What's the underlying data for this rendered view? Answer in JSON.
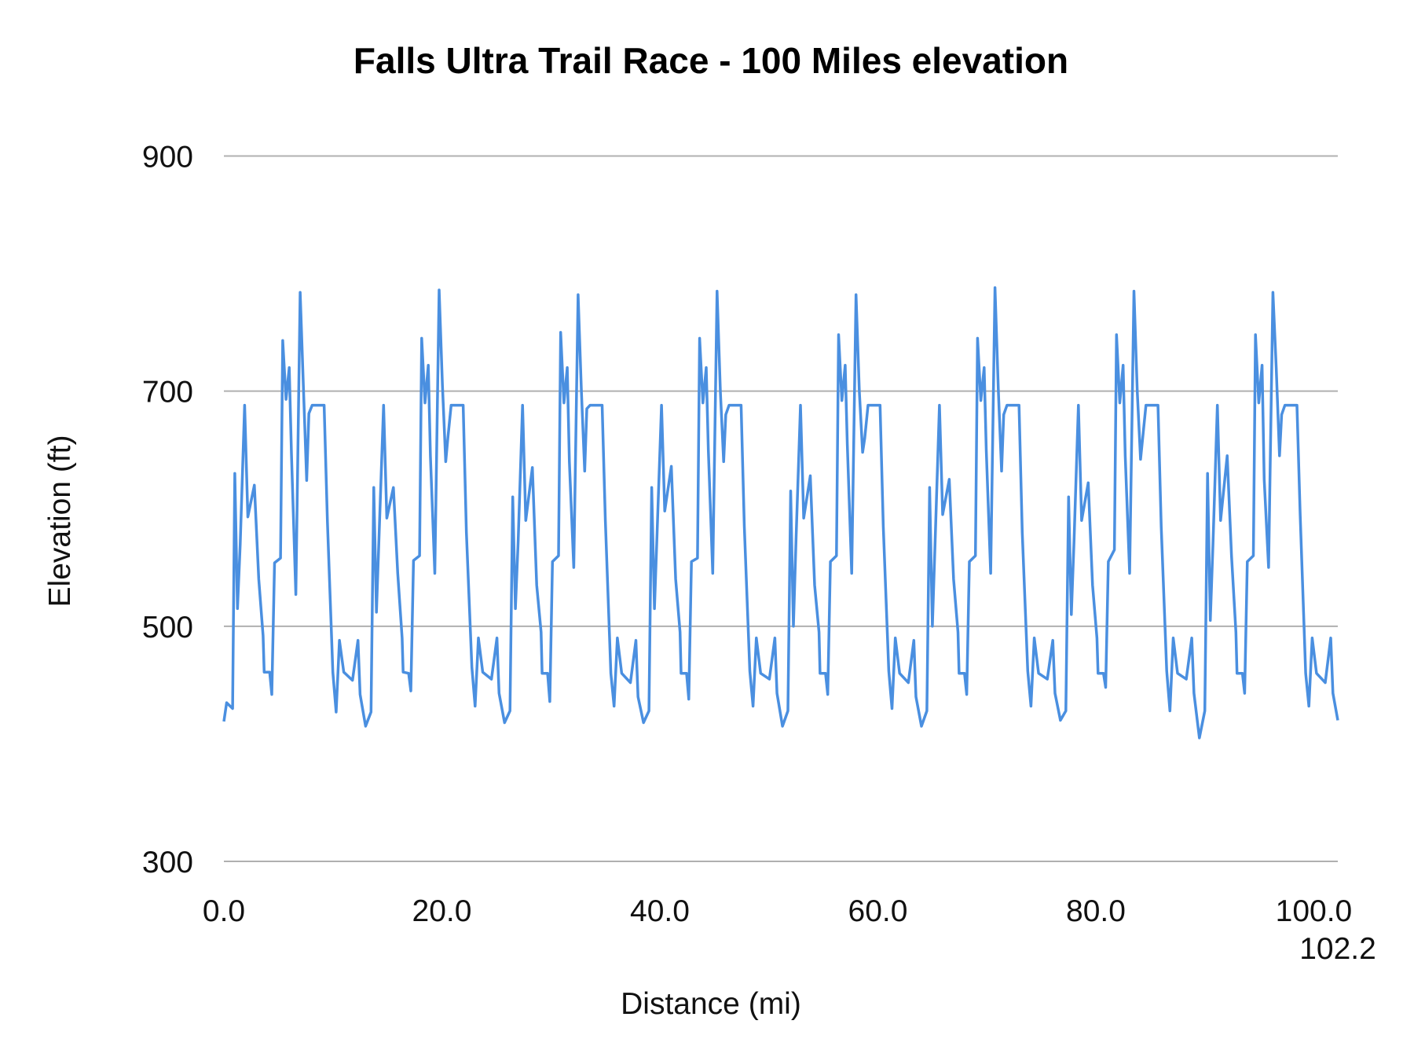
{
  "chart_data": {
    "type": "line",
    "title": "Falls Ultra Trail Race - 100 Miles elevation",
    "xlabel": "Distance (mi)",
    "ylabel": "Elevation (ft)",
    "xlim": [
      0,
      102.2
    ],
    "ylim": [
      300,
      900
    ],
    "x_ticks": [
      "0.0",
      "20.0",
      "40.0",
      "60.0",
      "80.0",
      "100.0",
      "102.2"
    ],
    "x_tick_values": [
      0,
      20,
      40,
      60,
      80,
      100,
      102.2
    ],
    "y_ticks": [
      "300",
      "500",
      "700",
      "900"
    ],
    "y_tick_values": [
      300,
      500,
      700,
      900
    ],
    "grid": "horizontal",
    "legend": "none",
    "line_color": "#4a8fe0",
    "grid_color": "#b0b0b0",
    "x": [
      0.0,
      0.25,
      0.8,
      1.0,
      1.25,
      1.5,
      1.9,
      2.2,
      2.8,
      3.2,
      3.6,
      3.7,
      4.2,
      4.4,
      4.65,
      5.2,
      5.4,
      5.7,
      6.0,
      6.2,
      6.6,
      7.0,
      7.3,
      7.6,
      7.8,
      8.1,
      9.2,
      9.5,
      10.0,
      10.3,
      10.6,
      11.0,
      11.8,
      12.3,
      12.5,
      13.0,
      13.5,
      13.75,
      14.0,
      14.25,
      14.65,
      14.95,
      15.55,
      15.95,
      16.35,
      16.45,
      16.95,
      17.15,
      17.4,
      17.95,
      18.15,
      18.45,
      18.75,
      18.95,
      19.35,
      19.75,
      20.05,
      20.35,
      20.55,
      20.85,
      21.95,
      22.25,
      22.75,
      23.05,
      23.35,
      23.75,
      24.55,
      25.05,
      25.25,
      25.75,
      26.25,
      26.5,
      26.75,
      27.0,
      27.4,
      27.7,
      28.3,
      28.7,
      29.1,
      29.2,
      29.7,
      29.9,
      30.15,
      30.7,
      30.9,
      31.2,
      31.5,
      31.7,
      32.1,
      32.5,
      32.8,
      33.1,
      33.3,
      33.6,
      34.7,
      35.0,
      35.5,
      35.8,
      36.1,
      36.5,
      37.3,
      37.8,
      38.0,
      38.5,
      39.0,
      39.25,
      39.5,
      39.75,
      40.15,
      40.45,
      41.05,
      41.45,
      41.85,
      41.95,
      42.45,
      42.65,
      42.9,
      43.45,
      43.65,
      43.95,
      44.25,
      44.45,
      44.85,
      45.25,
      45.55,
      45.85,
      46.05,
      46.35,
      47.45,
      47.75,
      48.25,
      48.55,
      48.85,
      49.25,
      50.05,
      50.55,
      50.75,
      51.25,
      51.75,
      52.0,
      52.25,
      52.5,
      52.9,
      53.2,
      53.8,
      54.2,
      54.6,
      54.7,
      55.2,
      55.4,
      55.65,
      56.2,
      56.4,
      56.7,
      57.0,
      57.2,
      57.6,
      58.0,
      58.3,
      58.6,
      58.8,
      59.1,
      60.2,
      60.5,
      61.0,
      61.3,
      61.6,
      62.0,
      62.8,
      63.3,
      63.5,
      64.0,
      64.5,
      64.75,
      65.0,
      65.25,
      65.65,
      65.95,
      66.55,
      66.95,
      67.35,
      67.45,
      67.95,
      68.15,
      68.4,
      68.95,
      69.15,
      69.45,
      69.75,
      69.95,
      70.35,
      70.75,
      71.05,
      71.35,
      71.55,
      71.85,
      72.95,
      73.25,
      73.75,
      74.05,
      74.35,
      74.75,
      75.55,
      76.05,
      76.25,
      76.75,
      77.25,
      77.5,
      77.75,
      78.0,
      78.4,
      78.7,
      79.3,
      79.7,
      80.1,
      80.2,
      80.7,
      80.9,
      81.15,
      81.7,
      81.9,
      82.2,
      82.5,
      82.7,
      83.1,
      83.5,
      83.8,
      84.1,
      84.3,
      84.6,
      85.7,
      86.0,
      86.5,
      86.8,
      87.1,
      87.5,
      88.3,
      88.8,
      89.0,
      89.5,
      90.0,
      90.25,
      90.5,
      90.75,
      91.15,
      91.45,
      92.05,
      92.45,
      92.85,
      92.95,
      93.45,
      93.65,
      93.9,
      94.45,
      94.65,
      94.95,
      95.25,
      95.45,
      95.85,
      96.25,
      96.55,
      96.85,
      97.05,
      97.35,
      98.45,
      98.75,
      99.25,
      99.55,
      99.85,
      100.25,
      101.05,
      101.55,
      101.75,
      102.2
    ],
    "y": [
      419,
      435,
      430,
      630,
      515,
      570,
      688,
      593,
      620,
      540,
      492,
      461,
      461,
      442,
      554,
      558,
      743,
      693,
      720,
      647,
      527,
      784,
      702,
      624,
      681,
      688,
      688,
      589,
      461,
      427,
      488,
      461,
      454,
      488,
      442,
      415,
      427,
      618,
      512,
      580,
      688,
      592,
      618,
      545,
      490,
      461,
      460,
      445,
      556,
      560,
      745,
      690,
      722,
      645,
      545,
      786,
      705,
      640,
      660,
      688,
      688,
      580,
      465,
      432,
      490,
      461,
      455,
      490,
      443,
      418,
      428,
      610,
      515,
      572,
      688,
      590,
      635,
      535,
      495,
      460,
      460,
      436,
      555,
      560,
      750,
      690,
      720,
      640,
      550,
      782,
      700,
      632,
      685,
      688,
      688,
      590,
      460,
      432,
      490,
      460,
      452,
      488,
      440,
      418,
      428,
      618,
      515,
      580,
      688,
      598,
      636,
      540,
      495,
      460,
      460,
      438,
      555,
      558,
      745,
      690,
      720,
      650,
      545,
      785,
      700,
      640,
      680,
      688,
      688,
      585,
      462,
      432,
      490,
      460,
      455,
      490,
      443,
      415,
      428,
      615,
      500,
      575,
      688,
      592,
      628,
      535,
      495,
      460,
      460,
      442,
      555,
      560,
      748,
      692,
      722,
      655,
      545,
      782,
      700,
      648,
      660,
      688,
      688,
      585,
      462,
      430,
      490,
      460,
      452,
      488,
      440,
      415,
      428,
      618,
      500,
      570,
      688,
      595,
      625,
      540,
      495,
      460,
      460,
      442,
      555,
      560,
      745,
      692,
      720,
      650,
      545,
      788,
      702,
      632,
      680,
      688,
      688,
      580,
      462,
      432,
      490,
      460,
      455,
      488,
      443,
      420,
      428,
      610,
      510,
      572,
      688,
      590,
      622,
      535,
      490,
      460,
      460,
      448,
      555,
      565,
      748,
      690,
      722,
      645,
      545,
      785,
      700,
      642,
      660,
      688,
      688,
      585,
      462,
      428,
      490,
      460,
      455,
      490,
      443,
      405,
      428,
      630,
      505,
      570,
      688,
      590,
      645,
      560,
      495,
      460,
      460,
      443,
      555,
      560,
      748,
      690,
      722,
      625,
      550,
      784,
      720,
      645,
      680,
      688,
      688,
      595,
      460,
      432,
      490,
      460,
      452,
      490,
      443,
      420
    ]
  }
}
